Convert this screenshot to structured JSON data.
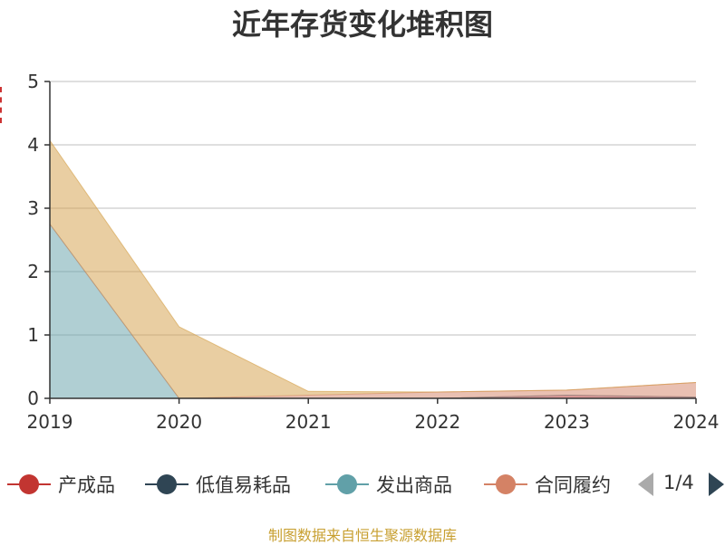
{
  "chart_data": {
    "type": "area",
    "title": "近年存货变化堆积图",
    "x": [
      "2019",
      "2020",
      "2021",
      "2022",
      "2023",
      "2024"
    ],
    "ylim": [
      0,
      5
    ],
    "yticks": [
      "0",
      "1",
      "2",
      "3",
      "4",
      "5"
    ],
    "grid": true,
    "stacked": true,
    "series": [
      {
        "name": "产成品",
        "color": "#c23531",
        "values": [
          0,
          0,
          0,
          0,
          0.05,
          0.02
        ]
      },
      {
        "name": "低值易耗品",
        "color": "#2f4554",
        "values": [
          0,
          0,
          0,
          0,
          0,
          0
        ]
      },
      {
        "name": "发出商品",
        "color": "#61a0a8",
        "values": [
          2.75,
          0,
          0,
          0,
          0,
          0
        ]
      },
      {
        "name": "合同履约",
        "color": "#d48265",
        "values": [
          0,
          0,
          0.05,
          0.1,
          0.08,
          0.23
        ]
      },
      {
        "name": "",
        "color": "#d49e45",
        "values": [
          1.32,
          1.13,
          0.06,
          0,
          0,
          0
        ]
      }
    ],
    "legend": {
      "position": "bottom",
      "page": "1/4"
    }
  },
  "source": "制图数据来自恒生聚源数据库"
}
